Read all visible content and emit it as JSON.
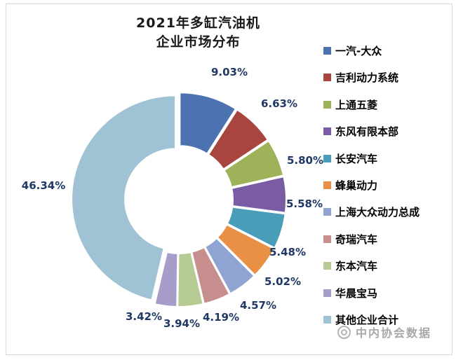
{
  "title": {
    "line1": "2021年多缸汽油机",
    "line2": "企业市场分布"
  },
  "watermark": {
    "text": "中内协会数据"
  },
  "chart_data": {
    "type": "pie",
    "subtype": "doughnut",
    "title": "2021年多缸汽油机 企业市场分布",
    "start_angle_deg": 0,
    "direction": "clockwise",
    "legend_position": "right",
    "grid": false,
    "series": [
      {
        "name": "一汽-大众",
        "value": 9.03,
        "label": "9.03%",
        "color": "#4C72B2"
      },
      {
        "name": "吉利动力系统",
        "value": 6.63,
        "label": "6.63%",
        "color": "#A9453F"
      },
      {
        "name": "上通五菱",
        "value": 5.8,
        "label": "5.80%",
        "color": "#9EB25A"
      },
      {
        "name": "东风有限本部",
        "value": 5.58,
        "label": "5.58%",
        "color": "#7A5CA5"
      },
      {
        "name": "长安汽车",
        "value": 5.48,
        "label": "5.48%",
        "color": "#4A9DB9"
      },
      {
        "name": "蜂巢动力",
        "value": 5.02,
        "label": "5.02%",
        "color": "#E89045"
      },
      {
        "name": "上海大众动力总成",
        "value": 4.57,
        "label": "4.57%",
        "color": "#8FA4D2"
      },
      {
        "name": "奇瑞汽车",
        "value": 4.19,
        "label": "4.19%",
        "color": "#C68F8E"
      },
      {
        "name": "东本汽车",
        "value": 3.94,
        "label": "3.94%",
        "color": "#B6CB93"
      },
      {
        "name": "华晨宝马",
        "value": 3.42,
        "label": "3.42%",
        "color": "#A89CCB"
      },
      {
        "name": "其他企业合计",
        "value": 46.34,
        "label": "46.34%",
        "color": "#9FC2D4"
      }
    ]
  }
}
